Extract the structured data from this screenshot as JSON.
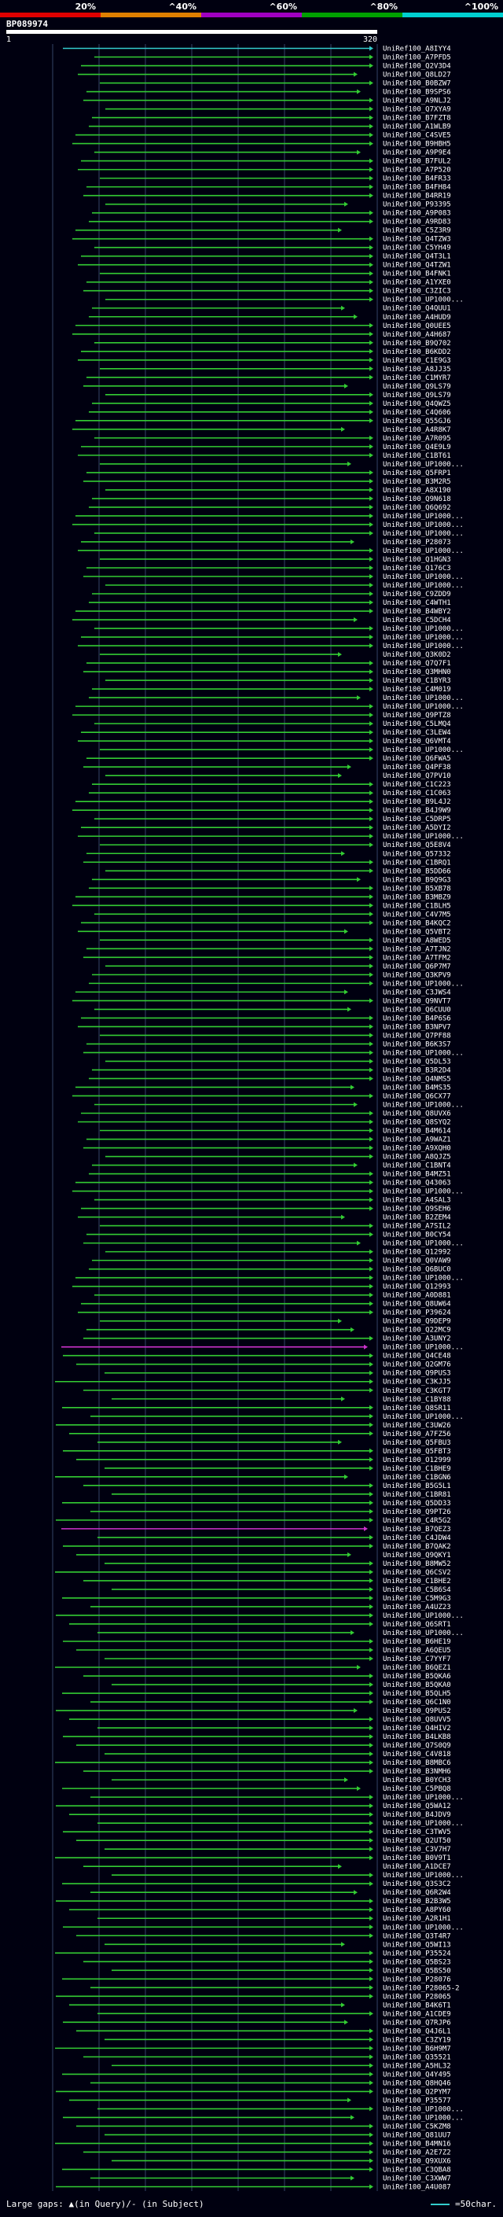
{
  "chart_data": {
    "type": "alignment-overview",
    "query_name": "BP089974",
    "query_length": 320,
    "ruler_start": "1",
    "ruler_end": "320",
    "identity_scale": [
      {
        "label": "20%",
        "color": "#e00000"
      },
      {
        "label": "^40%",
        "color": "#e08000"
      },
      {
        "label": "^60%",
        "color": "#a000c0"
      },
      {
        "label": "^80%",
        "color": "#00a000"
      },
      {
        "label": "^100%",
        "color": "#00d0d0"
      }
    ],
    "colors": {
      "green_hit": "#33cc33",
      "cyan_hit": "#33cccc",
      "magenta_hit": "#cc33cc",
      "gridline": "#334466",
      "ruler": "#ffffff"
    },
    "hits": [
      "UniRef100_A8IYY4",
      "UniRef100_A7PFD5",
      "UniRef100_Q2V3D4",
      "UniRef100_Q8LD27",
      "UniRef100_B0BZW7",
      "UniRef100_B9SPS6",
      "UniRef100_A9NLJ2",
      "UniRef100_Q7XYA9",
      "UniRef100_B7FZT8",
      "UniRef100_A1WLB9",
      "UniRef100_C4SVE5",
      "UniRef100_B9HBH5",
      "UniRef100_A9P9E4",
      "UniRef100_B7FUL2",
      "UniRef100_A7P520",
      "UniRef100_B4FR33",
      "UniRef100_B4FH84",
      "UniRef100_B4RR19",
      "UniRef100_P93395",
      "UniRef100_A9P083",
      "UniRef100_A9RD83",
      "UniRef100_C5Z3R9",
      "UniRef100_Q4TZW3",
      "UniRef100_C5YH49",
      "UniRef100_Q4T3L1",
      "UniRef100_Q4TZW1",
      "UniRef100_B4FNK1",
      "UniRef100_A1YXE0",
      "UniRef100_C3ZIC3",
      "UniRef100_UP1000...",
      "UniRef100_Q4QUU1",
      "UniRef100_A4HUD9",
      "UniRef100_Q0UEE5",
      "UniRef100_A4H687",
      "UniRef100_B9Q702",
      "UniRef100_B6KDD2",
      "UniRef100_C1E9G3",
      "UniRef100_A8JJ35",
      "UniRef100_C1MYR7",
      "UniRef100_Q9LS79",
      "UniRef100_Q9LS79",
      "UniRef100_Q4QWZ5",
      "UniRef100_C4Q606",
      "UniRef100_Q55GJ6",
      "UniRef100_A4R8K7",
      "UniRef100_A7R095",
      "UniRef100_Q4E9L9",
      "UniRef100_C1BT61",
      "UniRef100_UP1000...",
      "UniRef100_Q5FRP1",
      "UniRef100_B3M2R5",
      "UniRef100_A8X190",
      "UniRef100_Q9N618",
      "UniRef100_Q6Q692",
      "UniRef100_UP1000...",
      "UniRef100_UP1000...",
      "UniRef100_UP1000...",
      "UniRef100_P28073",
      "UniRef100_UP1000...",
      "UniRef100_Q1HGN3",
      "UniRef100_Q176C3",
      "UniRef100_UP1000...",
      "UniRef100_UP1000...",
      "UniRef100_C9ZDD9",
      "UniRef100_C4WTH1",
      "UniRef100_B4WBY2",
      "UniRef100_C5DCH4",
      "UniRef100_UP1000...",
      "UniRef100_UP1000...",
      "UniRef100_UP1000...",
      "UniRef100_Q3K0D2",
      "UniRef100_Q7Q7F1",
      "UniRef100_Q3MHN0",
      "UniRef100_C1BYR3",
      "UniRef100_C4M019",
      "UniRef100_UP1000...",
      "UniRef100_UP1000...",
      "UniRef100_Q9PTZ8",
      "UniRef100_C5LMQ4",
      "UniRef100_C3LEW4",
      "UniRef100_Q6VMT4",
      "UniRef100_UP1000...",
      "UniRef100_Q6FWA5",
      "UniRef100_Q4PF38",
      "UniRef100_Q7PV10",
      "UniRef100_C1C223",
      "UniRef100_C1C063",
      "UniRef100_B9L4J2",
      "UniRef100_B4J9W9",
      "UniRef100_C5DRP5",
      "UniRef100_A5DYI2",
      "UniRef100_UP1000...",
      "UniRef100_Q5E8V4",
      "UniRef100_Q57332",
      "UniRef100_C1BRQ1",
      "UniRef100_B5DD66",
      "UniRef100_B9Q9G3",
      "UniRef100_B5XB78",
      "UniRef100_B3MBZ9",
      "UniRef100_C1BLH5",
      "UniRef100_C4V7M5",
      "UniRef100_B4KQC2",
      "UniRef100_Q5VBT2",
      "UniRef100_A8WED5",
      "UniRef100_A7TJN2",
      "UniRef100_A7TFM2",
      "UniRef100_Q6P7M7",
      "UniRef100_Q3KPV9",
      "UniRef100_UP1000...",
      "UniRef100_C3JWS4",
      "UniRef100_Q9NVT7",
      "UniRef100_Q6CUU0",
      "UniRef100_B4P6S6",
      "UniRef100_B3NPV7",
      "UniRef100_Q7PF88",
      "UniRef100_B6K3S7",
      "UniRef100_UP1000...",
      "UniRef100_Q5DL53",
      "UniRef100_B3R2D4",
      "UniRef100_Q4NMS5",
      "UniRef100_B4MS35",
      "UniRef100_Q6CX77",
      "UniRef100_UP1000...",
      "UniRef100_Q8UVX6",
      "UniRef100_Q8SYQ2",
      "UniRef100_B4M614",
      "UniRef100_A9WAZ1",
      "UniRef100_A9XQH0",
      "UniRef100_A8QJZ5",
      "UniRef100_C1BNT4",
      "UniRef100_B4MZ51",
      "UniRef100_Q43063",
      "UniRef100_UP1000...",
      "UniRef100_A4SAL3",
      "UniRef100_Q9SEH6",
      "UniRef100_B2ZEM4",
      "UniRef100_A7SIL2",
      "UniRef100_B0CY54",
      "UniRef100_UP1000...",
      "UniRef100_Q12992",
      "UniRef100_Q0VAW9",
      "UniRef100_Q6BUC0",
      "UniRef100_UP1000...",
      "UniRef100_Q12993",
      "UniRef100_A0D881",
      "UniRef100_Q8UW64",
      "UniRef100_P39624",
      "UniRef100_Q9DEP9",
      "UniRef100_Q22MC9",
      "UniRef100_A3UNY2",
      "UniRef100_UP1000...",
      "UniRef100_Q4CE48",
      "UniRef100_Q2GM76",
      "UniRef100_Q9PUS3",
      "UniRef100_C3KJJ5",
      "UniRef100_C3KGT7",
      "UniRef100_C1BY88",
      "UniRef100_Q8SR11",
      "UniRef100_UP1000...",
      "UniRef100_C3UW26",
      "UniRef100_A7FZ56",
      "UniRef100_Q5FBU3",
      "UniRef100_Q5FBT3",
      "UniRef100_O12999",
      "UniRef100_C1BHE9",
      "UniRef100_C1BGN6",
      "UniRef100_B5G5L1",
      "UniRef100_C1BR81",
      "UniRef100_Q5DD33",
      "UniRef100_Q9PT26",
      "UniRef100_C4R5G2",
      "UniRef100_B7QEZ3",
      "UniRef100_C4JDW4",
      "UniRef100_B7QAK2",
      "UniRef100_Q9QKY1",
      "UniRef100_B8MW52",
      "UniRef100_Q6CSV2",
      "UniRef100_C1BHE2",
      "UniRef100_C5B6S4",
      "UniRef100_C5M9G3",
      "UniRef100_A4UZ23",
      "UniRef100_UP1000...",
      "UniRef100_Q6SRT1",
      "UniRef100_UP1000...",
      "UniRef100_B6HE19",
      "UniRef100_A6QEU5",
      "UniRef100_C7YYF7",
      "UniRef100_B6QEZ1",
      "UniRef100_B5QKA6",
      "UniRef100_B5QKA0",
      "UniRef100_B5QLH5",
      "UniRef100_Q6C1N0",
      "UniRef100_Q9PUS2",
      "UniRef100_Q8UVV5",
      "UniRef100_Q4HIV2",
      "UniRef100_B4LKB8",
      "UniRef100_Q7S0Q9",
      "UniRef100_C4V818",
      "UniRef100_B8MBC6",
      "UniRef100_B3NMH6",
      "UniRef100_B0YCH3",
      "UniRef100_C5PBQ8",
      "UniRef100_UP1000...",
      "UniRef100_Q5WA12",
      "UniRef100_B4JDV9",
      "UniRef100_UP1000...",
      "UniRef100_C3TWV5",
      "UniRef100_Q2UT50",
      "UniRef100_C3V7H7",
      "UniRef100_B0V9T1",
      "UniRef100_A1DCE7",
      "UniRef100_UP1000...",
      "UniRef100_Q3S3C2",
      "UniRef100_Q6R2W4",
      "UniRef100_B2B3W5",
      "UniRef100_A8PY60",
      "UniRef100_A2R1H1",
      "UniRef100_UP1000...",
      "UniRef100_Q3T4R7",
      "UniRef100_Q5WI13",
      "UniRef100_P35524",
      "UniRef100_Q5BS23",
      "UniRef100_Q5BS50",
      "UniRef100_P28076",
      "UniRef100_P28065-2",
      "UniRef100_P28065",
      "UniRef100_B4K6T1",
      "UniRef100_A1CDE9",
      "UniRef100_Q7RJP6",
      "UniRef100_Q4J6L1",
      "UniRef100_C3ZY19",
      "UniRef100_B6H9M7",
      "UniRef100_Q35521",
      "UniRef100_A5HL32",
      "UniRef100_Q4Y495",
      "UniRef100_Q8HQ46",
      "UniRef100_Q2PYM7",
      "UniRef100_P35577",
      "UniRef100_UP1000...",
      "UniRef100_UP1000...",
      "UniRef100_C5KZM8",
      "UniRef100_Q81UU7",
      "UniRef100_B4MN16",
      "UniRef100_A2E7Z2",
      "UniRef100_Q9XUX6",
      "UniRef100_C3QBA8",
      "UniRef100_C3XWW7",
      "UniRef100_A4U087"
    ],
    "footer_left": "Large gaps: ▲(in Query)/- (in Subject)",
    "footer_right": "=50char."
  }
}
